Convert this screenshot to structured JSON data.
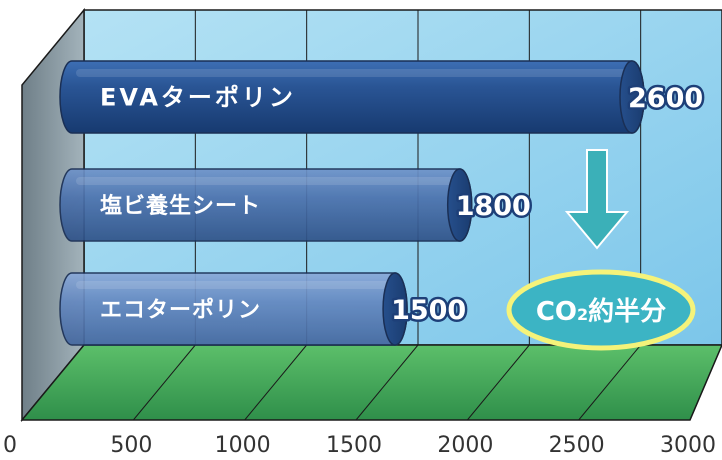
{
  "chart_data": {
    "type": "bar",
    "orientation": "horizontal",
    "style": "3d-cylinder",
    "categories": [
      "EVAターポリン",
      "塩ビ養生シート",
      "エコターポリン"
    ],
    "values": [
      2600,
      1800,
      1500
    ],
    "xticks": [
      "0",
      "500",
      "1000",
      "1500",
      "2000",
      "2500",
      "3000"
    ],
    "xlim": [
      0,
      3000
    ],
    "grid": true,
    "annotation": {
      "label_main": "CO",
      "label_sub": "2",
      "label_rest": "約半分"
    },
    "colors": {
      "wall": "#8fd0ee",
      "floor": "#3fa35a",
      "bar": "#2b5797",
      "arrow": "#3bb0b8",
      "callout": "#3cb4c4",
      "callout_border": "#f5f37a"
    }
  }
}
